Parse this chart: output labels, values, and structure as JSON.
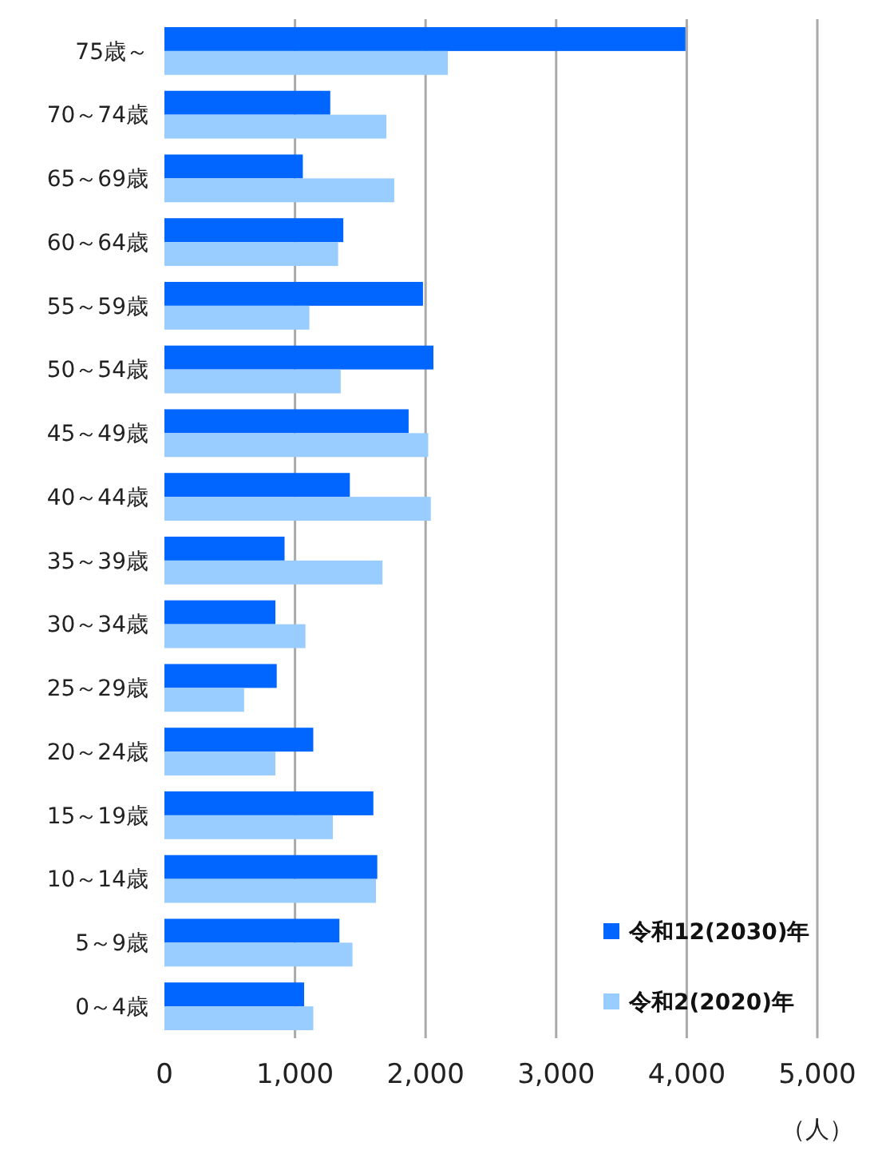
{
  "chart_data": {
    "type": "bar",
    "orientation": "horizontal",
    "xlabel": "（人）",
    "categories": [
      "75歳～",
      "70～74歳",
      "65～69歳",
      "60～64歳",
      "55～59歳",
      "50～54歳",
      "45～49歳",
      "40～44歳",
      "35～39歳",
      "30～34歳",
      "25～29歳",
      "20～24歳",
      "15～19歳",
      "10～14歳",
      "5～9歳",
      "0～4歳"
    ],
    "series": [
      {
        "name": "令和12(2030)年",
        "color": "#0066ff",
        "values": [
          3990,
          1270,
          1060,
          1370,
          1980,
          2060,
          1870,
          1420,
          920,
          850,
          860,
          1140,
          1600,
          1630,
          1340,
          1070
        ]
      },
      {
        "name": "令和2(2020)年",
        "color": "#99ccff",
        "values": [
          2170,
          1700,
          1760,
          1330,
          1110,
          1350,
          2020,
          2040,
          1670,
          1080,
          610,
          850,
          1290,
          1620,
          1440,
          1140
        ]
      }
    ],
    "xlim": [
      0,
      5000
    ],
    "xticks": [
      {
        "value": 0,
        "label": "0"
      },
      {
        "value": 1000,
        "label": "1,000"
      },
      {
        "value": 2000,
        "label": "2,000"
      },
      {
        "value": 3000,
        "label": "3,000"
      },
      {
        "value": 4000,
        "label": "4,000"
      },
      {
        "value": 5000,
        "label": "5,000"
      }
    ],
    "grid": "x",
    "legend": "bottom right"
  }
}
